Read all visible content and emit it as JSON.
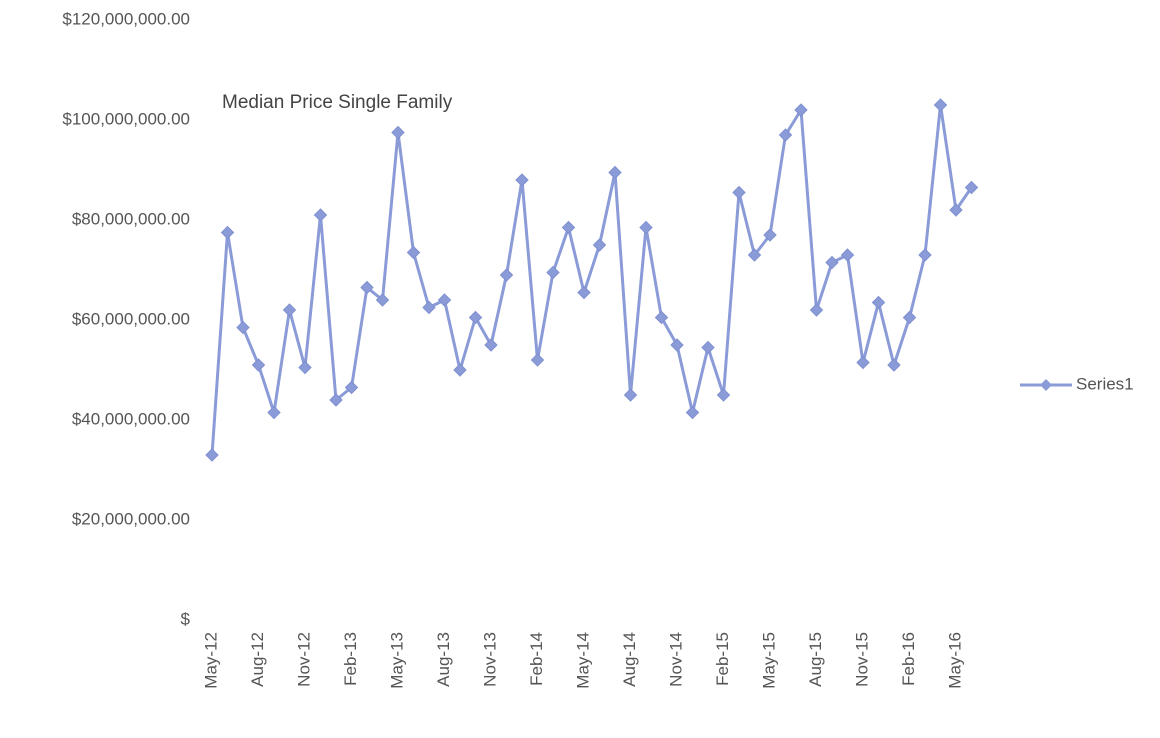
{
  "chart_data": {
    "type": "line",
    "title": "Median Price Single Family",
    "categories": [
      "May-12",
      null,
      null,
      "Aug-12",
      null,
      null,
      "Nov-12",
      null,
      null,
      "Feb-13",
      null,
      null,
      "May-13",
      null,
      null,
      "Aug-13",
      null,
      null,
      "Nov-13",
      null,
      null,
      "Feb-14",
      null,
      null,
      "May-14",
      null,
      null,
      "Aug-14",
      null,
      null,
      "Nov-14",
      null,
      null,
      "Feb-15",
      null,
      null,
      "May-15",
      null,
      null,
      "Aug-15",
      null,
      null,
      "Nov-15",
      null,
      null,
      "Feb-16",
      null,
      null,
      "May-16",
      null
    ],
    "series": [
      {
        "name": "Series1",
        "color": "#8b9bd8",
        "values": [
          33000000,
          77500000,
          58500000,
          51000000,
          41500000,
          62000000,
          50500000,
          81000000,
          44000000,
          46500000,
          66500000,
          64000000,
          97500000,
          73500000,
          62500000,
          64000000,
          50000000,
          60500000,
          55000000,
          69000000,
          88000000,
          52000000,
          69500000,
          78500000,
          65500000,
          75000000,
          89500000,
          45000000,
          78500000,
          60500000,
          55000000,
          41500000,
          54500000,
          45000000,
          85500000,
          73000000,
          77000000,
          97000000,
          102000000,
          62000000,
          71500000,
          73000000,
          51500000,
          63500000,
          51000000,
          60500000,
          73000000,
          103000000,
          82000000,
          86500000
        ]
      }
    ],
    "ylim": [
      0,
      120000000
    ],
    "yticks": [
      {
        "value": 0,
        "label": "$"
      },
      {
        "value": 20000000,
        "label": "$20,000,000.00"
      },
      {
        "value": 40000000,
        "label": "$40,000,000.00"
      },
      {
        "value": 60000000,
        "label": "$60,000,000.00"
      },
      {
        "value": 80000000,
        "label": "$80,000,000.00"
      },
      {
        "value": 100000000,
        "label": "$100,000,000.00"
      },
      {
        "value": 120000000,
        "label": "$120,000,000.00"
      }
    ],
    "legend": "right"
  }
}
